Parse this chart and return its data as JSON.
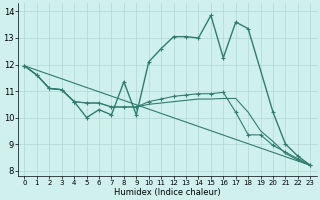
{
  "xlabel": "Humidex (Indice chaleur)",
  "xlim": [
    -0.5,
    23.5
  ],
  "ylim": [
    7.8,
    14.3
  ],
  "xticks": [
    0,
    1,
    2,
    3,
    4,
    5,
    6,
    7,
    8,
    9,
    10,
    11,
    12,
    13,
    14,
    15,
    16,
    17,
    18,
    19,
    20,
    21,
    22,
    23
  ],
  "yticks": [
    8,
    9,
    10,
    11,
    12,
    13,
    14
  ],
  "bg_color": "#cff0ed",
  "line_color": "#2e7d6e",
  "grid_color": "#b0d8d0",
  "series": [
    {
      "x": [
        0,
        1,
        2,
        3,
        4,
        5,
        6,
        7,
        8,
        9,
        10,
        11,
        12,
        13,
        14,
        15,
        16,
        17,
        18,
        20,
        21,
        22,
        23
      ],
      "y": [
        11.95,
        11.6,
        11.1,
        11.05,
        10.6,
        10.0,
        10.3,
        10.1,
        11.35,
        10.1,
        12.1,
        12.6,
        13.05,
        13.05,
        13.0,
        13.85,
        12.25,
        13.6,
        13.35,
        10.2,
        9.0,
        8.55,
        8.2
      ],
      "marker": true,
      "lw": 1.0
    },
    {
      "x": [
        0,
        1,
        2,
        3,
        4,
        5,
        6,
        7,
        8,
        9,
        10,
        11,
        12,
        13,
        14,
        15,
        16,
        17,
        18,
        19,
        20,
        21,
        22,
        23
      ],
      "y": [
        11.95,
        11.6,
        11.1,
        11.05,
        10.6,
        10.55,
        10.55,
        10.4,
        10.4,
        10.4,
        10.6,
        10.7,
        10.8,
        10.85,
        10.9,
        10.9,
        10.95,
        10.2,
        9.35,
        9.35,
        8.95,
        8.7,
        8.45,
        8.2
      ],
      "marker": true,
      "lw": 0.8
    },
    {
      "x": [
        0,
        1,
        2,
        3,
        4,
        5,
        6,
        7,
        8,
        9,
        10,
        11,
        12,
        13,
        14,
        15,
        16,
        17,
        18,
        19,
        20,
        21,
        22,
        23
      ],
      "y": [
        11.95,
        11.6,
        11.1,
        11.05,
        10.6,
        10.55,
        10.55,
        10.4,
        10.4,
        10.4,
        10.5,
        10.55,
        10.6,
        10.65,
        10.7,
        10.7,
        10.72,
        10.72,
        10.2,
        9.5,
        9.1,
        8.65,
        8.4,
        8.2
      ],
      "marker": false,
      "lw": 0.8
    },
    {
      "x": [
        0,
        23
      ],
      "y": [
        11.95,
        8.2
      ],
      "marker": false,
      "lw": 0.8
    }
  ]
}
